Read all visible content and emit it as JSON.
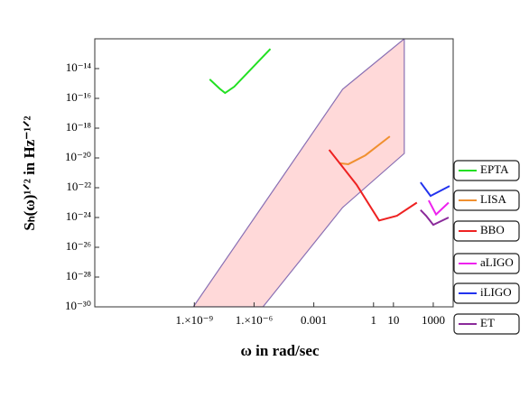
{
  "chart_data": {
    "type": "line",
    "xlabel": "ω in rad/sec",
    "ylabel": "Sₕ(ω)¹ᐟ² in Hz⁻¹ᐟ²",
    "xscale": "log",
    "yscale": "log",
    "grid": false,
    "legend": "right",
    "xlim": [
      1e-14,
      10000
    ],
    "ylim": [
      1e-30,
      1e-12
    ],
    "xticks": [
      {
        "value": 1e-09,
        "label": "1.×10⁻⁹"
      },
      {
        "value": 1e-06,
        "label": "1.×10⁻⁶"
      },
      0.001,
      1,
      10,
      1000
    ],
    "yticks": [
      {
        "value": 1e-14,
        "label": "10⁻¹⁴"
      },
      {
        "value": 1e-16,
        "label": "10⁻¹⁶"
      },
      {
        "value": 1e-18,
        "label": "10⁻¹⁸"
      },
      {
        "value": 1e-20,
        "label": "10⁻²⁰"
      },
      {
        "value": 1e-22,
        "label": "10⁻²²"
      },
      {
        "value": 1e-24,
        "label": "10⁻²⁴"
      },
      {
        "value": 1e-26,
        "label": "10⁻²⁶"
      },
      {
        "value": 1e-28,
        "label": "10⁻²⁸"
      },
      {
        "value": 1e-30,
        "label": "10⁻³⁰"
      }
    ],
    "band": {
      "color": "#ffd9d9",
      "edge_color": "#8a70b4",
      "x": [
        8.9e-10,
        2.8e-06,
        0.028,
        35
      ],
      "upper": [
        1e-30,
        6.6e-24,
        4.1e-16,
        1e-12
      ],
      "lower": [
        1e-30,
        1e-30,
        4.7e-24,
        2e-20
      ]
    },
    "series": [
      {
        "name": "EPTA",
        "color": "#22e022",
        "x": [
          5.9e-09,
          1.9e-08,
          3.5e-08,
          1e-07,
          6.6e-06
        ],
        "values": [
          1.9e-15,
          4.4e-16,
          2.3e-16,
          6e-16,
          2.1e-13
        ]
      },
      {
        "name": "LISA",
        "color": "#f09030",
        "x": [
          0.019,
          0.054,
          0.39,
          6.6
        ],
        "values": [
          4.4e-21,
          3.8e-21,
          1.5e-20,
          2.8e-19
        ]
      },
      {
        "name": "BBO",
        "color": "#ee2222",
        "x": [
          0.0059,
          0.14,
          1.9,
          15,
          150
        ],
        "values": [
          3.5e-20,
          1.6e-22,
          6.3e-25,
          1.3e-24,
          1e-23
        ]
      },
      {
        "name": "aLIGO",
        "color": "#ee22ee",
        "x": [
          590,
          1380,
          5900
        ],
        "values": [
          1.4e-23,
          1.6e-24,
          1e-23
        ]
      },
      {
        "name": "iLIGO",
        "color": "#2233ee",
        "x": [
          230,
          730,
          6600
        ],
        "values": [
          2.3e-22,
          2.8e-23,
          1.3e-22
        ]
      },
      {
        "name": "ET",
        "color": "#8a2a9a",
        "x": [
          230,
          440,
          1000,
          5900
        ],
        "values": [
          3.2e-24,
          1.3e-24,
          3.2e-25,
          1e-24
        ]
      }
    ]
  }
}
